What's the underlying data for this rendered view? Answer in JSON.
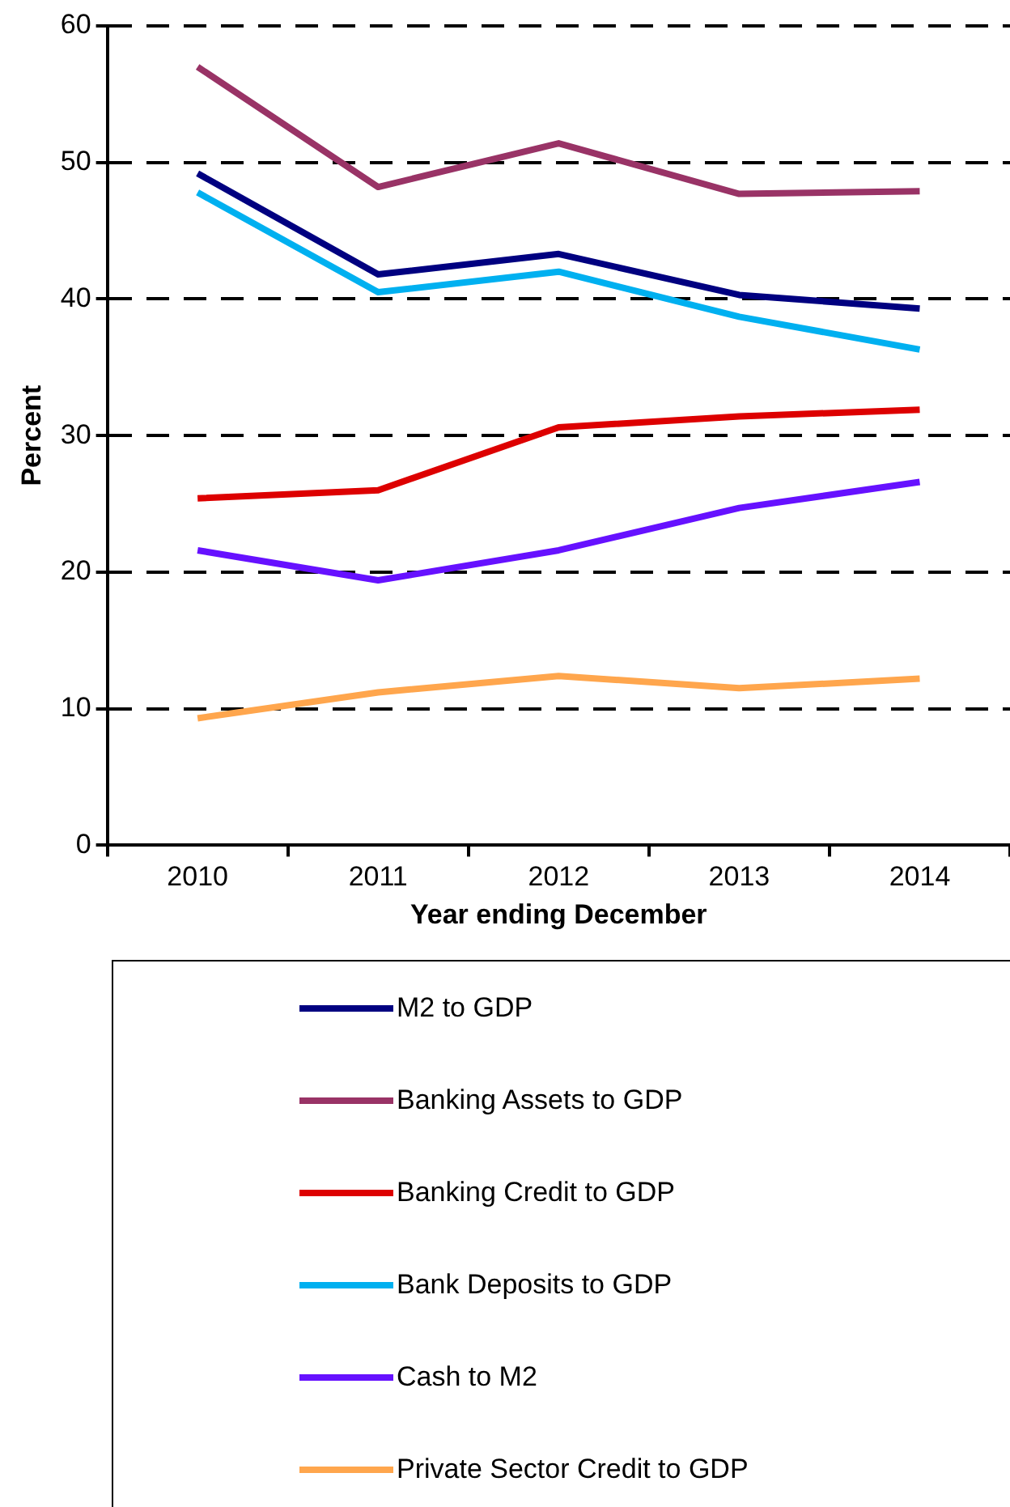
{
  "chart_data": {
    "type": "line",
    "xlabel": "Year ending December",
    "ylabel": "Percent",
    "categories": [
      "2010",
      "2011",
      "2012",
      "2013",
      "2014"
    ],
    "series": [
      {
        "name": "M2 to GDP",
        "color": "#000080",
        "values": [
          49.2,
          41.8,
          43.3,
          40.3,
          39.3
        ]
      },
      {
        "name": "Banking Assets to GDP",
        "color": "#993366",
        "values": [
          57.0,
          48.2,
          51.4,
          47.7,
          47.9
        ]
      },
      {
        "name": "Banking Credit to GDP",
        "color": "#dd0000",
        "values": [
          25.4,
          26.0,
          30.6,
          31.4,
          31.9
        ]
      },
      {
        "name": "Bank Deposits to GDP",
        "color": "#00b0f0",
        "values": [
          47.8,
          40.5,
          42.0,
          38.7,
          36.3
        ]
      },
      {
        "name": "Cash to M2",
        "color": "#6611ff",
        "values": [
          21.6,
          19.4,
          21.6,
          24.7,
          26.6
        ]
      },
      {
        "name": "Private Sector Credit to GDP",
        "color": "#ffa64d",
        "values": [
          9.3,
          11.2,
          12.4,
          11.5,
          12.2
        ]
      }
    ],
    "ylim": [
      0,
      60
    ],
    "yticks": [
      0,
      10,
      20,
      30,
      40,
      50,
      60
    ],
    "grid": "y",
    "legend": "bottom",
    "marker": "none",
    "line_style": "solid"
  }
}
